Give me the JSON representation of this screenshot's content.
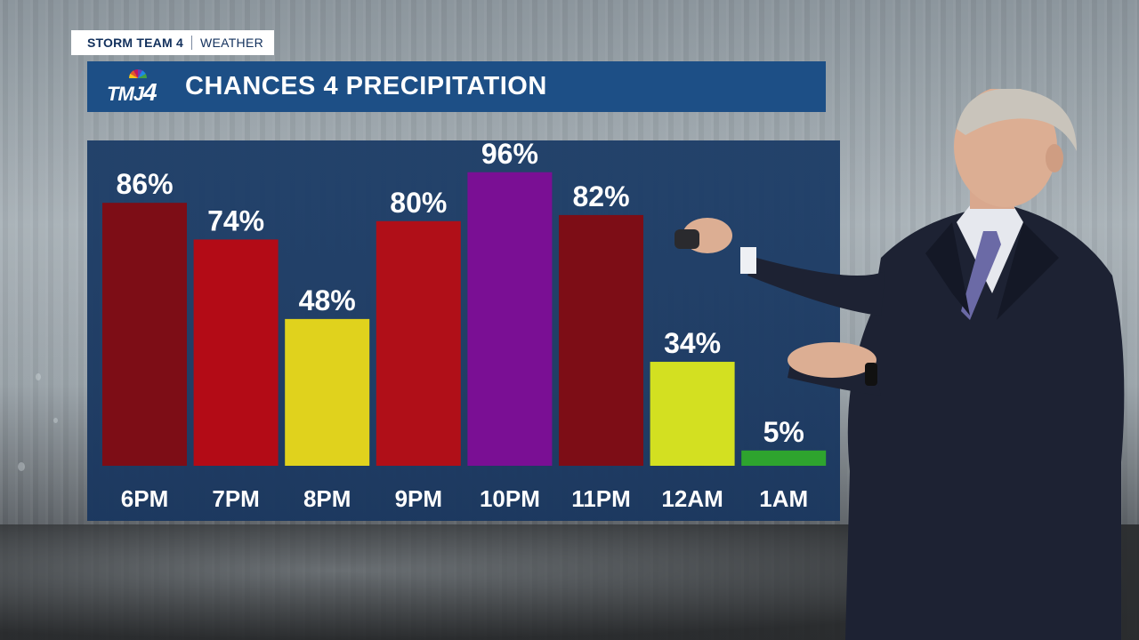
{
  "header": {
    "brand": "STORM TEAM 4",
    "section": "WEATHER"
  },
  "logo": {
    "text": "TMJ",
    "number": "4"
  },
  "title": "CHANCES 4 PRECIPITATION",
  "chart_data": {
    "type": "bar",
    "categories": [
      "6PM",
      "7PM",
      "8PM",
      "9PM",
      "10PM",
      "11PM",
      "12AM",
      "1AM"
    ],
    "values": [
      86,
      74,
      48,
      80,
      96,
      82,
      34,
      5
    ],
    "value_suffix": "%",
    "ylim": [
      0,
      100
    ],
    "colors": [
      "#7d0d16",
      "#b30b16",
      "#e0d21d",
      "#b00f18",
      "#7a0f94",
      "#7d0d16",
      "#d3e021",
      "#2ea42e"
    ],
    "grid": false,
    "legend": "none"
  }
}
